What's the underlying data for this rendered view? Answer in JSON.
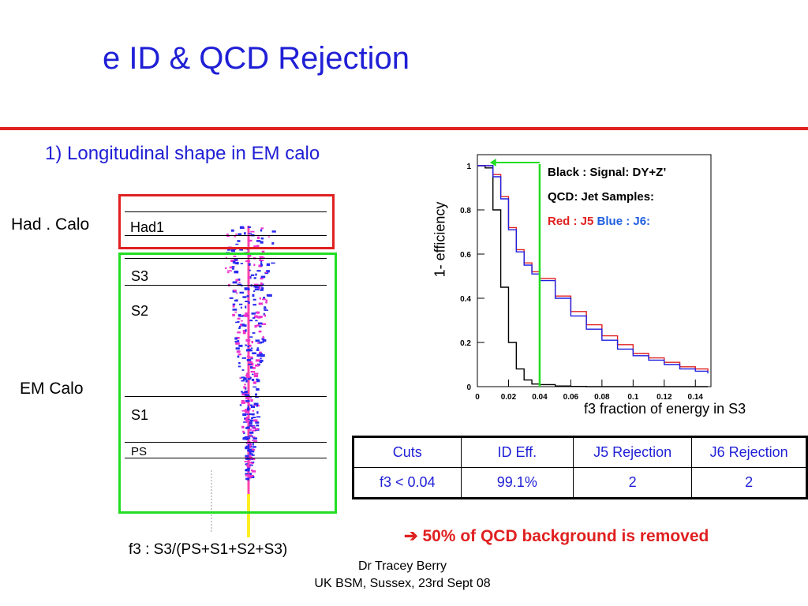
{
  "slide": {
    "title": "e ID & QCD Rejection",
    "subtitle": "1) Longitudinal shape in EM calo"
  },
  "detector": {
    "had_calo_label": "Had . Calo",
    "em_calo_label": "EM Calo",
    "layers": {
      "had1": "Had1",
      "s3": "S3",
      "s2": "S2",
      "s1": "S1",
      "ps": "PS"
    },
    "f3_definition": "f3 : S3/(PS+S1+S2+S3)"
  },
  "legend": {
    "signal": "Black : Signal: DY+Z’",
    "qcd": "QCD: Jet Samples:",
    "red_label": "Red : J5",
    "blue_label": "Blue : J6:"
  },
  "chart_data": {
    "type": "line",
    "xlabel": "f3 fraction of energy in S3",
    "ylabel": "1- efficiency",
    "xlim": [
      0,
      0.15
    ],
    "ylim": [
      0,
      1.05
    ],
    "x_ticks": [
      "0",
      "0.02",
      "0.04",
      "0.06",
      "0.08",
      "0.1",
      "0.12",
      "0.14"
    ],
    "y_ticks": [
      "0",
      "0.2",
      "0.4",
      "0.6",
      "0.8",
      "1"
    ],
    "cut_line_x": 0.04,
    "x": [
      0,
      0.005,
      0.01,
      0.015,
      0.02,
      0.025,
      0.03,
      0.035,
      0.04,
      0.05,
      0.06,
      0.07,
      0.08,
      0.09,
      0.1,
      0.11,
      0.12,
      0.13,
      0.14,
      0.148
    ],
    "series": [
      {
        "name": "Black : Signal: DY+Z’",
        "color": "#000000",
        "values": [
          1.0,
          0.99,
          0.8,
          0.45,
          0.2,
          0.08,
          0.03,
          0.012,
          0.009,
          0.003,
          0.001,
          0.0,
          0.0,
          0.0,
          0.0,
          0.0,
          0.0,
          0.0,
          0.0,
          0.0
        ]
      },
      {
        "name": "Red : J5",
        "color": "#e02020",
        "values": [
          1.0,
          1.0,
          0.96,
          0.86,
          0.72,
          0.62,
          0.56,
          0.52,
          0.49,
          0.41,
          0.34,
          0.28,
          0.23,
          0.19,
          0.15,
          0.13,
          0.11,
          0.09,
          0.08,
          0.07
        ]
      },
      {
        "name": "Blue : J6:",
        "color": "#1f1fe0",
        "values": [
          1.0,
          1.0,
          0.95,
          0.85,
          0.71,
          0.61,
          0.55,
          0.51,
          0.48,
          0.4,
          0.32,
          0.26,
          0.21,
          0.17,
          0.14,
          0.12,
          0.1,
          0.08,
          0.07,
          0.06
        ]
      }
    ]
  },
  "cuts_table": {
    "headers": [
      "Cuts",
      "ID Eff.",
      "J5 Rejection",
      "J6 Rejection"
    ],
    "rows": [
      [
        "f3 < 0.04",
        "99.1%",
        "2",
        "2"
      ]
    ]
  },
  "conclusion": {
    "arrow": "➔",
    "text": "50% of QCD background is removed"
  },
  "footer": {
    "author": "Dr Tracey Berry",
    "event": "UK BSM, Sussex, 23rd Sept 08"
  },
  "colors": {
    "title_blue": "#1f1fd6",
    "accent_red": "#e02020",
    "box_green": "#22dd22"
  }
}
